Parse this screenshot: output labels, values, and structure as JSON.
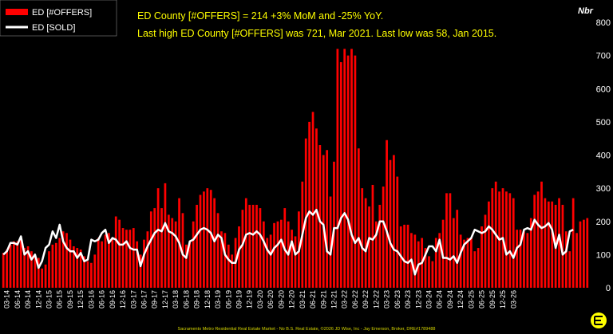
{
  "chart_data": {
    "type": "bar",
    "title": "",
    "ylabel": "Nbr",
    "ylim": [
      0,
      800
    ],
    "yticks": [
      "0",
      "100",
      "200",
      "300",
      "400",
      "500",
      "600",
      "700",
      "800"
    ],
    "grid": false,
    "legend_position": "top-left",
    "annotations": [
      "ED County [#OFFERS] = 214 +3% MoM and -25% YoY.",
      "Last high ED County [#OFFERS] was 721, Mar 2021. Last low was 58, Jan 2015."
    ],
    "footer": "Sacramento Metro Residential Real Estate Market - No B.S. Real Estate, ©2026 JD Wise, Inc - Jay Emerson, Broker, DRE#1789488",
    "x_labels": [
      "03-14",
      "06-14",
      "09-14",
      "12-14",
      "03-15",
      "06-15",
      "09-15",
      "12-15",
      "03-16",
      "06-16",
      "09-16",
      "12-16",
      "03-17",
      "06-17",
      "09-17",
      "12-17",
      "03-18",
      "06-18",
      "09-18",
      "12-18",
      "03-19",
      "06-19",
      "09-19",
      "12-19",
      "03-20",
      "06-20",
      "09-20",
      "12-20",
      "03-21",
      "06-21",
      "09-21",
      "12-21",
      "03-22",
      "06-22",
      "09-22",
      "12-22",
      "03-23",
      "06-23",
      "09-23",
      "12-23",
      "03-24",
      "06-24",
      "09-24",
      "12-24",
      "03-25",
      "06-25",
      "09-25",
      "12-25",
      "03-26"
    ],
    "x_start": "2014-02",
    "x_end": "2026-03",
    "series": [
      {
        "name": "ED [#OFFERS]",
        "type": "bar",
        "color": "#ff0000",
        "values": [
          105,
          115,
          130,
          140,
          140,
          145,
          120,
          125,
          110,
          95,
          90,
          58,
          70,
          110,
          130,
          135,
          150,
          170,
          165,
          145,
          125,
          120,
          115,
          95,
          80,
          75,
          100,
          150,
          140,
          160,
          165,
          150,
          215,
          205,
          180,
          175,
          175,
          180,
          140,
          100,
          145,
          170,
          230,
          240,
          300,
          240,
          315,
          220,
          210,
          200,
          270,
          225,
          130,
          140,
          200,
          250,
          280,
          290,
          300,
          295,
          270,
          225,
          170,
          165,
          130,
          100,
          150,
          185,
          235,
          270,
          250,
          250,
          250,
          240,
          200,
          150,
          160,
          195,
          200,
          205,
          240,
          200,
          175,
          155,
          230,
          320,
          450,
          500,
          530,
          480,
          430,
          400,
          415,
          275,
          380,
          720,
          680,
          720,
          700,
          720,
          700,
          420,
          300,
          270,
          245,
          310,
          200,
          250,
          305,
          445,
          385,
          400,
          335,
          185,
          190,
          190,
          165,
          160,
          140,
          150,
          120,
          95,
          80,
          150,
          165,
          205,
          285,
          285,
          210,
          235,
          160,
          145,
          150,
          150,
          110,
          120,
          185,
          220,
          260,
          300,
          320,
          290,
          300,
          290,
          285,
          270,
          175,
          175,
          170,
          165,
          210,
          280,
          290,
          320,
          270,
          260,
          260,
          250,
          270,
          250,
          170,
          110,
          270,
          165,
          200,
          205,
          210
        ]
      },
      {
        "name": "ED [SOLD]",
        "type": "line",
        "color": "#ffffff",
        "values": [
          100,
          110,
          135,
          135,
          130,
          155,
          100,
          110,
          85,
          100,
          60,
          80,
          120,
          130,
          170,
          150,
          190,
          140,
          120,
          110,
          110,
          90,
          105,
          80,
          85,
          145,
          140,
          145,
          165,
          175,
          135,
          150,
          145,
          130,
          130,
          140,
          120,
          115,
          115,
          65,
          100,
          125,
          145,
          165,
          175,
          170,
          195,
          170,
          165,
          155,
          135,
          100,
          90,
          140,
          145,
          160,
          175,
          180,
          175,
          165,
          140,
          160,
          150,
          100,
          85,
          75,
          75,
          115,
          130,
          160,
          165,
          160,
          170,
          160,
          140,
          115,
          100,
          120,
          130,
          145,
          115,
          100,
          140,
          100,
          110,
          160,
          210,
          230,
          220,
          235,
          200,
          190,
          110,
          100,
          180,
          180,
          210,
          225,
          205,
          160,
          135,
          150,
          120,
          110,
          150,
          145,
          160,
          200,
          200,
          170,
          135,
          115,
          110,
          95,
          80,
          75,
          85,
          40,
          70,
          75,
          100,
          125,
          125,
          110,
          145,
          90,
          90,
          85,
          95,
          75,
          105,
          130,
          140,
          150,
          175,
          170,
          165,
          170,
          185,
          175,
          160,
          145,
          150,
          100,
          110,
          90,
          120,
          130,
          175,
          180,
          175,
          205,
          190,
          180,
          185,
          195,
          175,
          120,
          160,
          100,
          110,
          170,
          175
        ]
      }
    ]
  }
}
